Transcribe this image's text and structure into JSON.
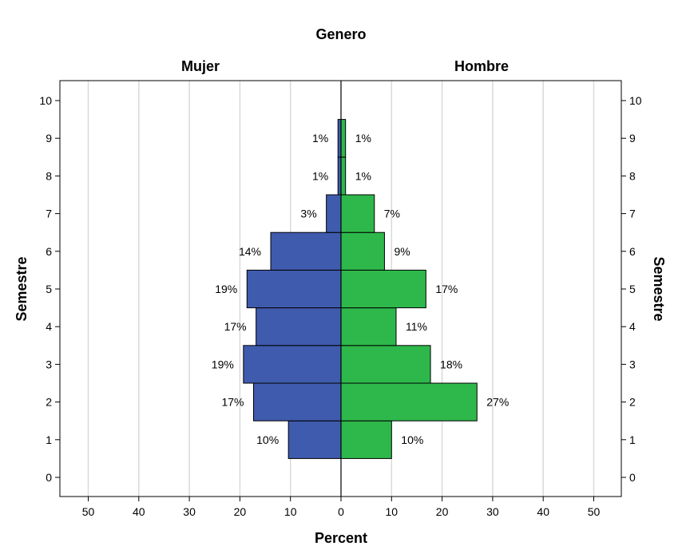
{
  "chart_data": {
    "type": "bar",
    "orientation": "horizontal-population-pyramid",
    "title": "Genero",
    "panels": [
      "Mujer",
      "Hombre"
    ],
    "xlabel": "Percent",
    "ylabel": "Semestre",
    "ylabel_right": "Semestre",
    "xlim": [
      0,
      55
    ],
    "xticks": [
      0,
      10,
      20,
      30,
      40,
      50
    ],
    "ylim": [
      -0.5,
      10.5
    ],
    "yticks": [
      0,
      1,
      2,
      3,
      4,
      5,
      6,
      7,
      8,
      9,
      10
    ],
    "grid": true,
    "categories": [
      1,
      2,
      3,
      4,
      5,
      6,
      7,
      8,
      9
    ],
    "series": [
      {
        "name": "Mujer",
        "color": "#3F5BAE",
        "values": [
          10.4,
          17.3,
          19.3,
          16.8,
          18.6,
          13.9,
          2.9,
          0.6,
          0.6
        ],
        "labels": [
          "10%",
          "17%",
          "19%",
          "17%",
          "19%",
          "14%",
          "3%",
          "1%",
          "1%"
        ]
      },
      {
        "name": "Hombre",
        "color": "#2EB84B",
        "values": [
          10.0,
          26.9,
          17.7,
          10.9,
          16.8,
          8.6,
          6.6,
          0.9,
          0.9
        ],
        "labels": [
          "10%",
          "27%",
          "18%",
          "11%",
          "17%",
          "9%",
          "7%",
          "1%",
          "1%"
        ]
      }
    ]
  }
}
